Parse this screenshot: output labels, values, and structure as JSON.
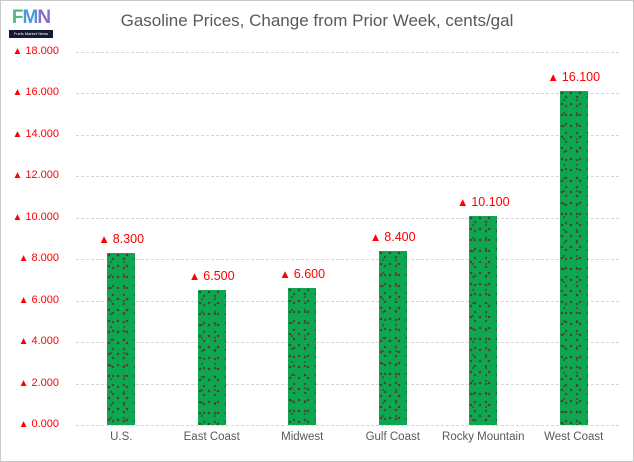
{
  "logo": {
    "letters": [
      {
        "ch": "F",
        "color": "#4cbb7c"
      },
      {
        "ch": "M",
        "color": "#4a9bd5"
      },
      {
        "ch": "N",
        "color": "#8b6bc7"
      }
    ],
    "caption": "Fuels Market News"
  },
  "chart_data": {
    "type": "bar",
    "title": "Gasoline Prices, Change from Prior Week, cents/gal",
    "categories": [
      "U.S.",
      "East Coast",
      "Midwest",
      "Gulf Coast",
      "Rocky Mountain",
      "West Coast"
    ],
    "values": [
      8.3,
      6.5,
      6.6,
      8.4,
      10.1,
      16.1
    ],
    "data_labels": [
      "8.300",
      "6.500",
      "6.600",
      "8.400",
      "10.100",
      "16.100"
    ],
    "marker": "▲",
    "ylim": [
      0,
      18
    ],
    "ytick_step": 2,
    "ytick_labels": [
      "0.000",
      "2.000",
      "4.000",
      "6.000",
      "8.000",
      "10.000",
      "12.000",
      "14.000",
      "16.000",
      "18.000"
    ],
    "xlabel": "",
    "ylabel": "",
    "grid": "horizontal-dashed",
    "legend": "none",
    "bar_color": "#0ca750",
    "value_text_color": "#fe0000",
    "axis_text_color": "#595959",
    "title_color": "#595959"
  }
}
